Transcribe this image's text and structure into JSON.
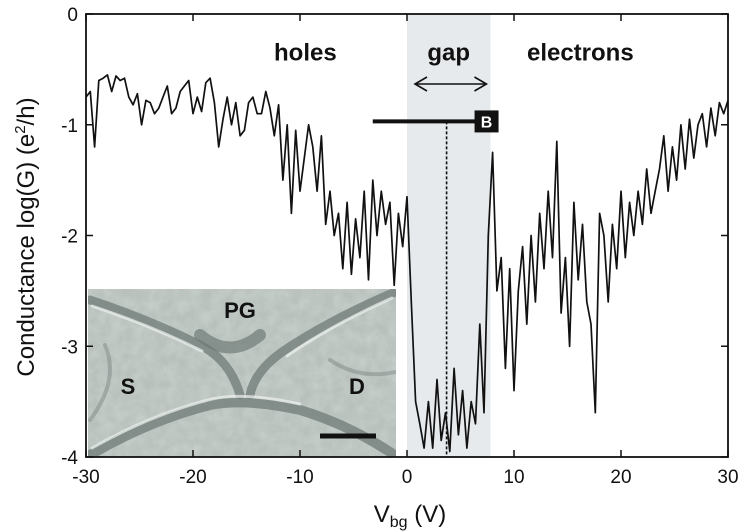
{
  "chart_data": {
    "type": "line",
    "xlabel_main": "V",
    "xlabel_sub": "bg",
    "xlabel_tail": " (V)",
    "ylabel_main": "Conductance log(G) (e",
    "ylabel_sup": "2",
    "ylabel_tail": "/h)",
    "xlim": [
      -30,
      30
    ],
    "ylim": [
      -4,
      0
    ],
    "xticks": [
      -30,
      -20,
      -10,
      0,
      10,
      20,
      30
    ],
    "yticks": [
      0,
      -1,
      -2,
      -3,
      -4
    ],
    "regions": {
      "holes": "holes",
      "gap": "gap",
      "electrons": "electrons"
    },
    "gap_range": [
      0,
      7.8
    ],
    "dashed_line_x": 3.7,
    "bar": {
      "x_start": -3.2,
      "x_end": 6.5,
      "y": -0.97
    },
    "bar_label": "B",
    "inset_labels": {
      "pg": "PG",
      "s": "S",
      "d": "D"
    },
    "series": [
      {
        "name": "conductance",
        "points": [
          [
            -30,
            -0.75
          ],
          [
            -29.6,
            -0.7
          ],
          [
            -29.2,
            -1.2
          ],
          [
            -28.8,
            -0.6
          ],
          [
            -28.4,
            -0.58
          ],
          [
            -28,
            -0.55
          ],
          [
            -27.6,
            -0.7
          ],
          [
            -27.2,
            -0.56
          ],
          [
            -26.8,
            -0.6
          ],
          [
            -26.4,
            -0.58
          ],
          [
            -26,
            -0.75
          ],
          [
            -25.6,
            -0.82
          ],
          [
            -25.2,
            -0.72
          ],
          [
            -24.8,
            -1.0
          ],
          [
            -24.4,
            -0.78
          ],
          [
            -24,
            -0.8
          ],
          [
            -23.6,
            -0.9
          ],
          [
            -23.2,
            -0.85
          ],
          [
            -22.8,
            -0.75
          ],
          [
            -22.4,
            -0.65
          ],
          [
            -22,
            -0.9
          ],
          [
            -21.6,
            -0.85
          ],
          [
            -21.2,
            -0.7
          ],
          [
            -20.8,
            -0.65
          ],
          [
            -20.4,
            -0.6
          ],
          [
            -20,
            -0.9
          ],
          [
            -19.6,
            -0.75
          ],
          [
            -19.2,
            -0.88
          ],
          [
            -18.8,
            -0.62
          ],
          [
            -18.4,
            -0.58
          ],
          [
            -18,
            -0.8
          ],
          [
            -17.6,
            -1.2
          ],
          [
            -17.2,
            -0.95
          ],
          [
            -16.8,
            -0.75
          ],
          [
            -16.4,
            -1.0
          ],
          [
            -16,
            -0.8
          ],
          [
            -15.6,
            -1.1
          ],
          [
            -15.2,
            -1.05
          ],
          [
            -14.8,
            -0.8
          ],
          [
            -14.4,
            -0.75
          ],
          [
            -14,
            -0.9
          ],
          [
            -13.6,
            -0.9
          ],
          [
            -13.2,
            -0.7
          ],
          [
            -12.8,
            -0.85
          ],
          [
            -12.4,
            -1.1
          ],
          [
            -12,
            -0.82
          ],
          [
            -11.6,
            -1.5
          ],
          [
            -11.2,
            -1.0
          ],
          [
            -10.8,
            -1.8
          ],
          [
            -10.4,
            -1.05
          ],
          [
            -10,
            -1.6
          ],
          [
            -9.6,
            -1.3
          ],
          [
            -9.2,
            -1.0
          ],
          [
            -8.8,
            -1.2
          ],
          [
            -8.4,
            -1.6
          ],
          [
            -8,
            -1.1
          ],
          [
            -7.6,
            -1.9
          ],
          [
            -7.2,
            -1.6
          ],
          [
            -6.8,
            -2.0
          ],
          [
            -6.4,
            -1.8
          ],
          [
            -6,
            -2.3
          ],
          [
            -5.6,
            -1.7
          ],
          [
            -5.2,
            -2.35
          ],
          [
            -4.8,
            -1.85
          ],
          [
            -4.4,
            -2.2
          ],
          [
            -4,
            -1.6
          ],
          [
            -3.6,
            -2.4
          ],
          [
            -3.2,
            -1.5
          ],
          [
            -2.8,
            -2.0
          ],
          [
            -2.4,
            -1.6
          ],
          [
            -2,
            -1.9
          ],
          [
            -1.6,
            -1.7
          ],
          [
            -1.2,
            -2.45
          ],
          [
            -0.8,
            -1.8
          ],
          [
            -0.4,
            -2.1
          ],
          [
            0,
            -1.65
          ],
          [
            0.4,
            -2.6
          ],
          [
            0.8,
            -3.5
          ],
          [
            1.2,
            -3.7
          ],
          [
            1.6,
            -3.92
          ],
          [
            2,
            -3.5
          ],
          [
            2.4,
            -3.92
          ],
          [
            2.8,
            -3.3
          ],
          [
            3.2,
            -3.85
          ],
          [
            3.6,
            -3.6
          ],
          [
            4,
            -3.95
          ],
          [
            4.4,
            -3.2
          ],
          [
            4.8,
            -3.8
          ],
          [
            5.2,
            -3.4
          ],
          [
            5.6,
            -3.92
          ],
          [
            6,
            -3.5
          ],
          [
            6.4,
            -3.7
          ],
          [
            6.8,
            -2.8
          ],
          [
            7.2,
            -3.6
          ],
          [
            7.6,
            -2.0
          ],
          [
            8,
            -1.25
          ],
          [
            8.4,
            -2.5
          ],
          [
            8.8,
            -2.2
          ],
          [
            9.2,
            -3.2
          ],
          [
            9.6,
            -2.3
          ],
          [
            10,
            -3.4
          ],
          [
            10.4,
            -2.5
          ],
          [
            10.8,
            -2.1
          ],
          [
            11.2,
            -2.8
          ],
          [
            11.6,
            -2.0
          ],
          [
            12,
            -2.6
          ],
          [
            12.4,
            -1.8
          ],
          [
            12.8,
            -2.3
          ],
          [
            13.2,
            -1.6
          ],
          [
            13.6,
            -2.2
          ],
          [
            14,
            -1.15
          ],
          [
            14.4,
            -2.7
          ],
          [
            14.8,
            -2.2
          ],
          [
            15.2,
            -3.0
          ],
          [
            15.6,
            -1.7
          ],
          [
            16,
            -2.4
          ],
          [
            16.4,
            -1.9
          ],
          [
            16.8,
            -2.6
          ],
          [
            17.2,
            -2.8
          ],
          [
            17.6,
            -3.6
          ],
          [
            18,
            -1.8
          ],
          [
            18.4,
            -2.0
          ],
          [
            18.8,
            -2.6
          ],
          [
            19.2,
            -1.9
          ],
          [
            19.6,
            -2.3
          ],
          [
            20,
            -1.6
          ],
          [
            20.4,
            -2.2
          ],
          [
            20.8,
            -1.7
          ],
          [
            21.2,
            -2.0
          ],
          [
            21.6,
            -1.6
          ],
          [
            22,
            -1.9
          ],
          [
            22.4,
            -1.4
          ],
          [
            22.8,
            -1.8
          ],
          [
            23.2,
            -1.6
          ],
          [
            23.6,
            -1.4
          ],
          [
            24,
            -1.1
          ],
          [
            24.4,
            -1.6
          ],
          [
            24.8,
            -1.2
          ],
          [
            25.2,
            -1.5
          ],
          [
            25.6,
            -1.0
          ],
          [
            26,
            -1.4
          ],
          [
            26.4,
            -0.95
          ],
          [
            26.8,
            -1.3
          ],
          [
            27.2,
            -1.0
          ],
          [
            27.6,
            -0.9
          ],
          [
            28,
            -1.2
          ],
          [
            28.4,
            -0.85
          ],
          [
            28.8,
            -1.1
          ],
          [
            29.2,
            -0.8
          ],
          [
            29.6,
            -0.9
          ],
          [
            30,
            -0.78
          ]
        ]
      }
    ]
  }
}
